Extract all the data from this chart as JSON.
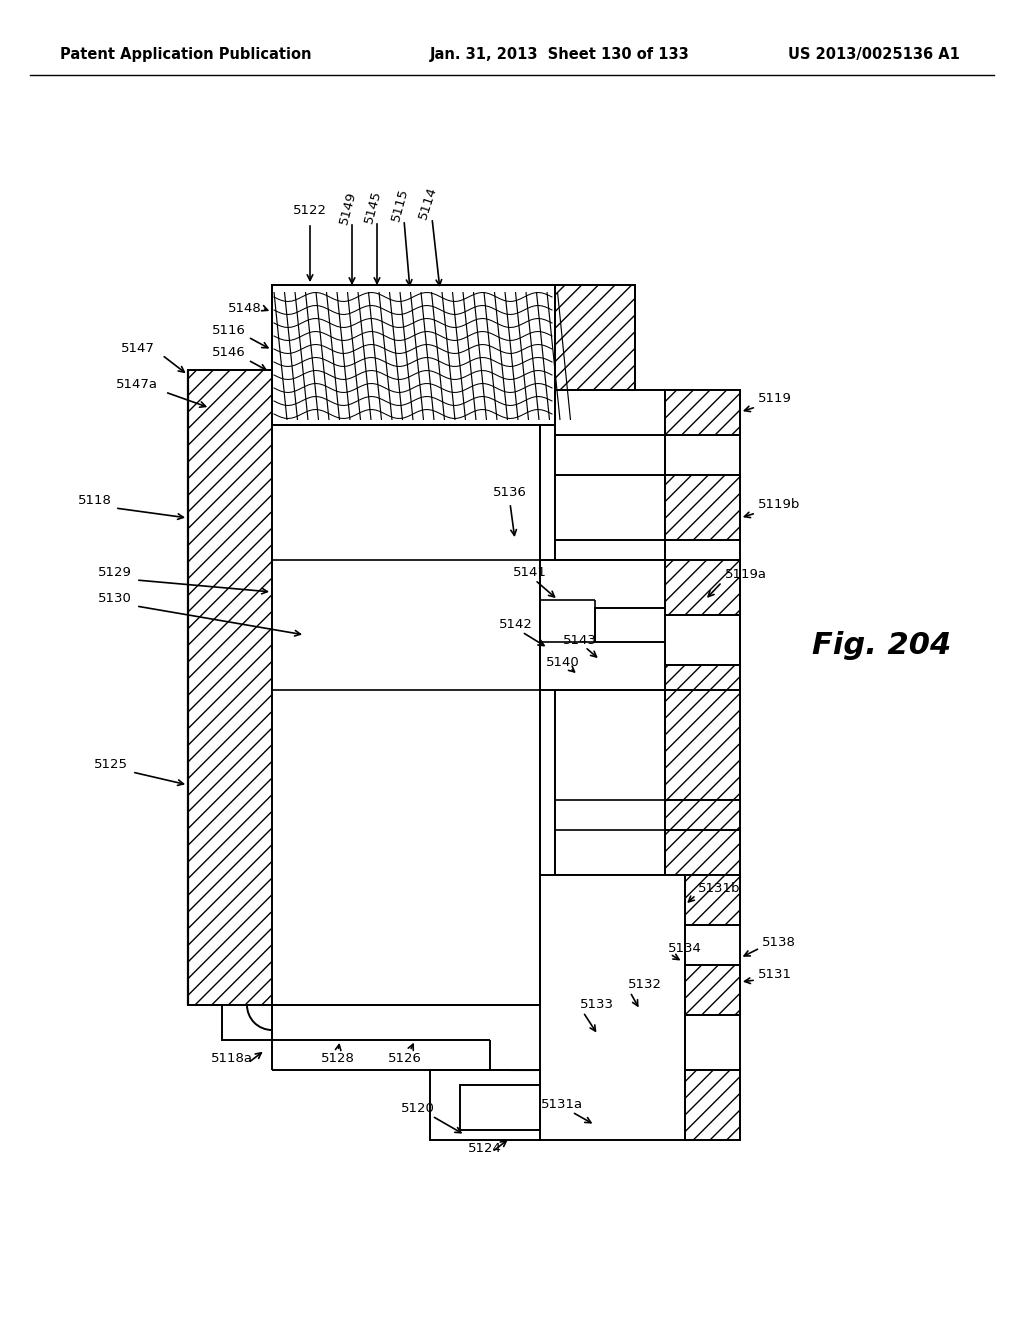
{
  "title_left": "Patent Application Publication",
  "title_mid": "Jan. 31, 2013  Sheet 130 of 133",
  "title_right": "US 2013/0025136 A1",
  "fig_label": "Fig. 204",
  "bg_color": "#ffffff",
  "line_color": "#000000"
}
